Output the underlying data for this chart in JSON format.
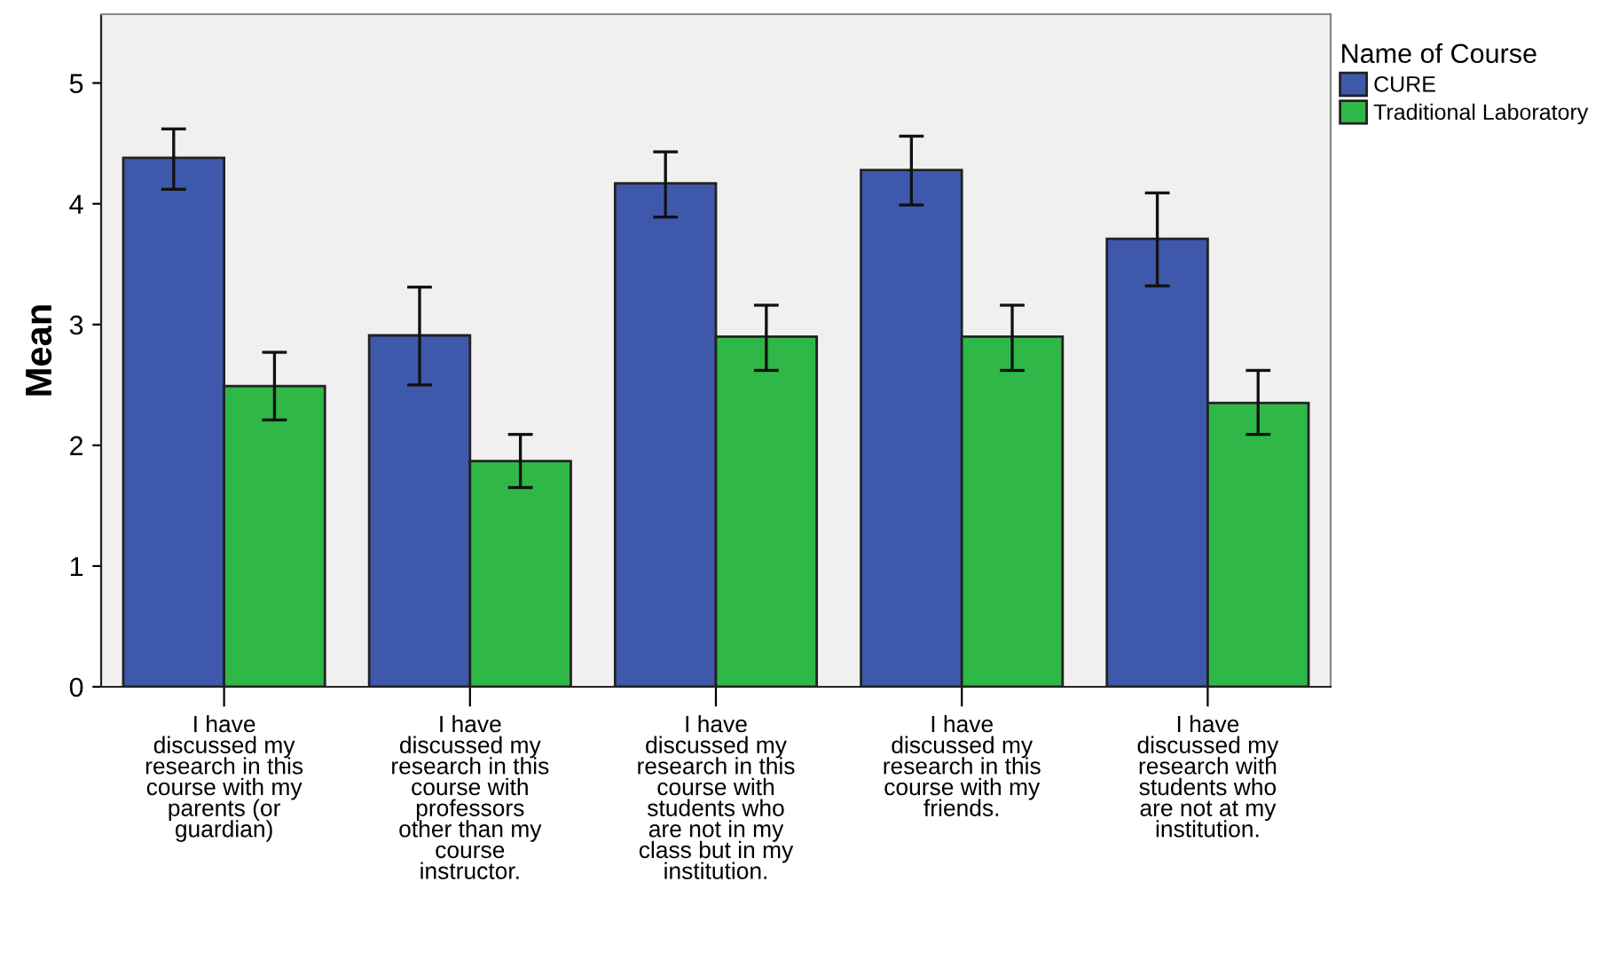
{
  "chart_data": {
    "type": "bar",
    "ylabel": "Mean",
    "legend_title": "Name of Course",
    "categories": [
      "I have\ndiscussed my\nresearch in this\ncourse with my\nparents (or\nguardian)",
      "I have\ndiscussed my\nresearch in this\ncourse with\nprofessors\nother than my\ncourse\ninstructor.",
      "I have\ndiscussed my\nresearch in this\ncourse with\nstudents who\nare not in my\nclass but in my\ninstitution.",
      "I have\ndiscussed my\nresearch in this\ncourse with my\nfriends.",
      "I have\ndiscussed my\nresearch with\nstudents who\nare not at my\ninstitution."
    ],
    "series": [
      {
        "name": "CURE",
        "color": "#3e58ac",
        "values": [
          4.38,
          2.91,
          4.17,
          4.28,
          3.71
        ],
        "errors": [
          [
            4.12,
            4.62
          ],
          [
            2.5,
            3.31
          ],
          [
            3.89,
            4.43
          ],
          [
            3.99,
            4.56
          ],
          [
            3.32,
            4.09
          ]
        ]
      },
      {
        "name": "Traditional Laboratory",
        "color": "#2fb847",
        "values": [
          2.49,
          1.87,
          2.9,
          2.9,
          2.35
        ],
        "errors": [
          [
            2.21,
            2.77
          ],
          [
            1.65,
            2.09
          ],
          [
            2.62,
            3.16
          ],
          [
            2.62,
            3.16
          ],
          [
            2.09,
            2.62
          ]
        ]
      }
    ],
    "ylim": [
      0,
      5.57
    ],
    "yticks": [
      0,
      1,
      2,
      3,
      4,
      5
    ],
    "grid": false,
    "legend": "top right"
  }
}
